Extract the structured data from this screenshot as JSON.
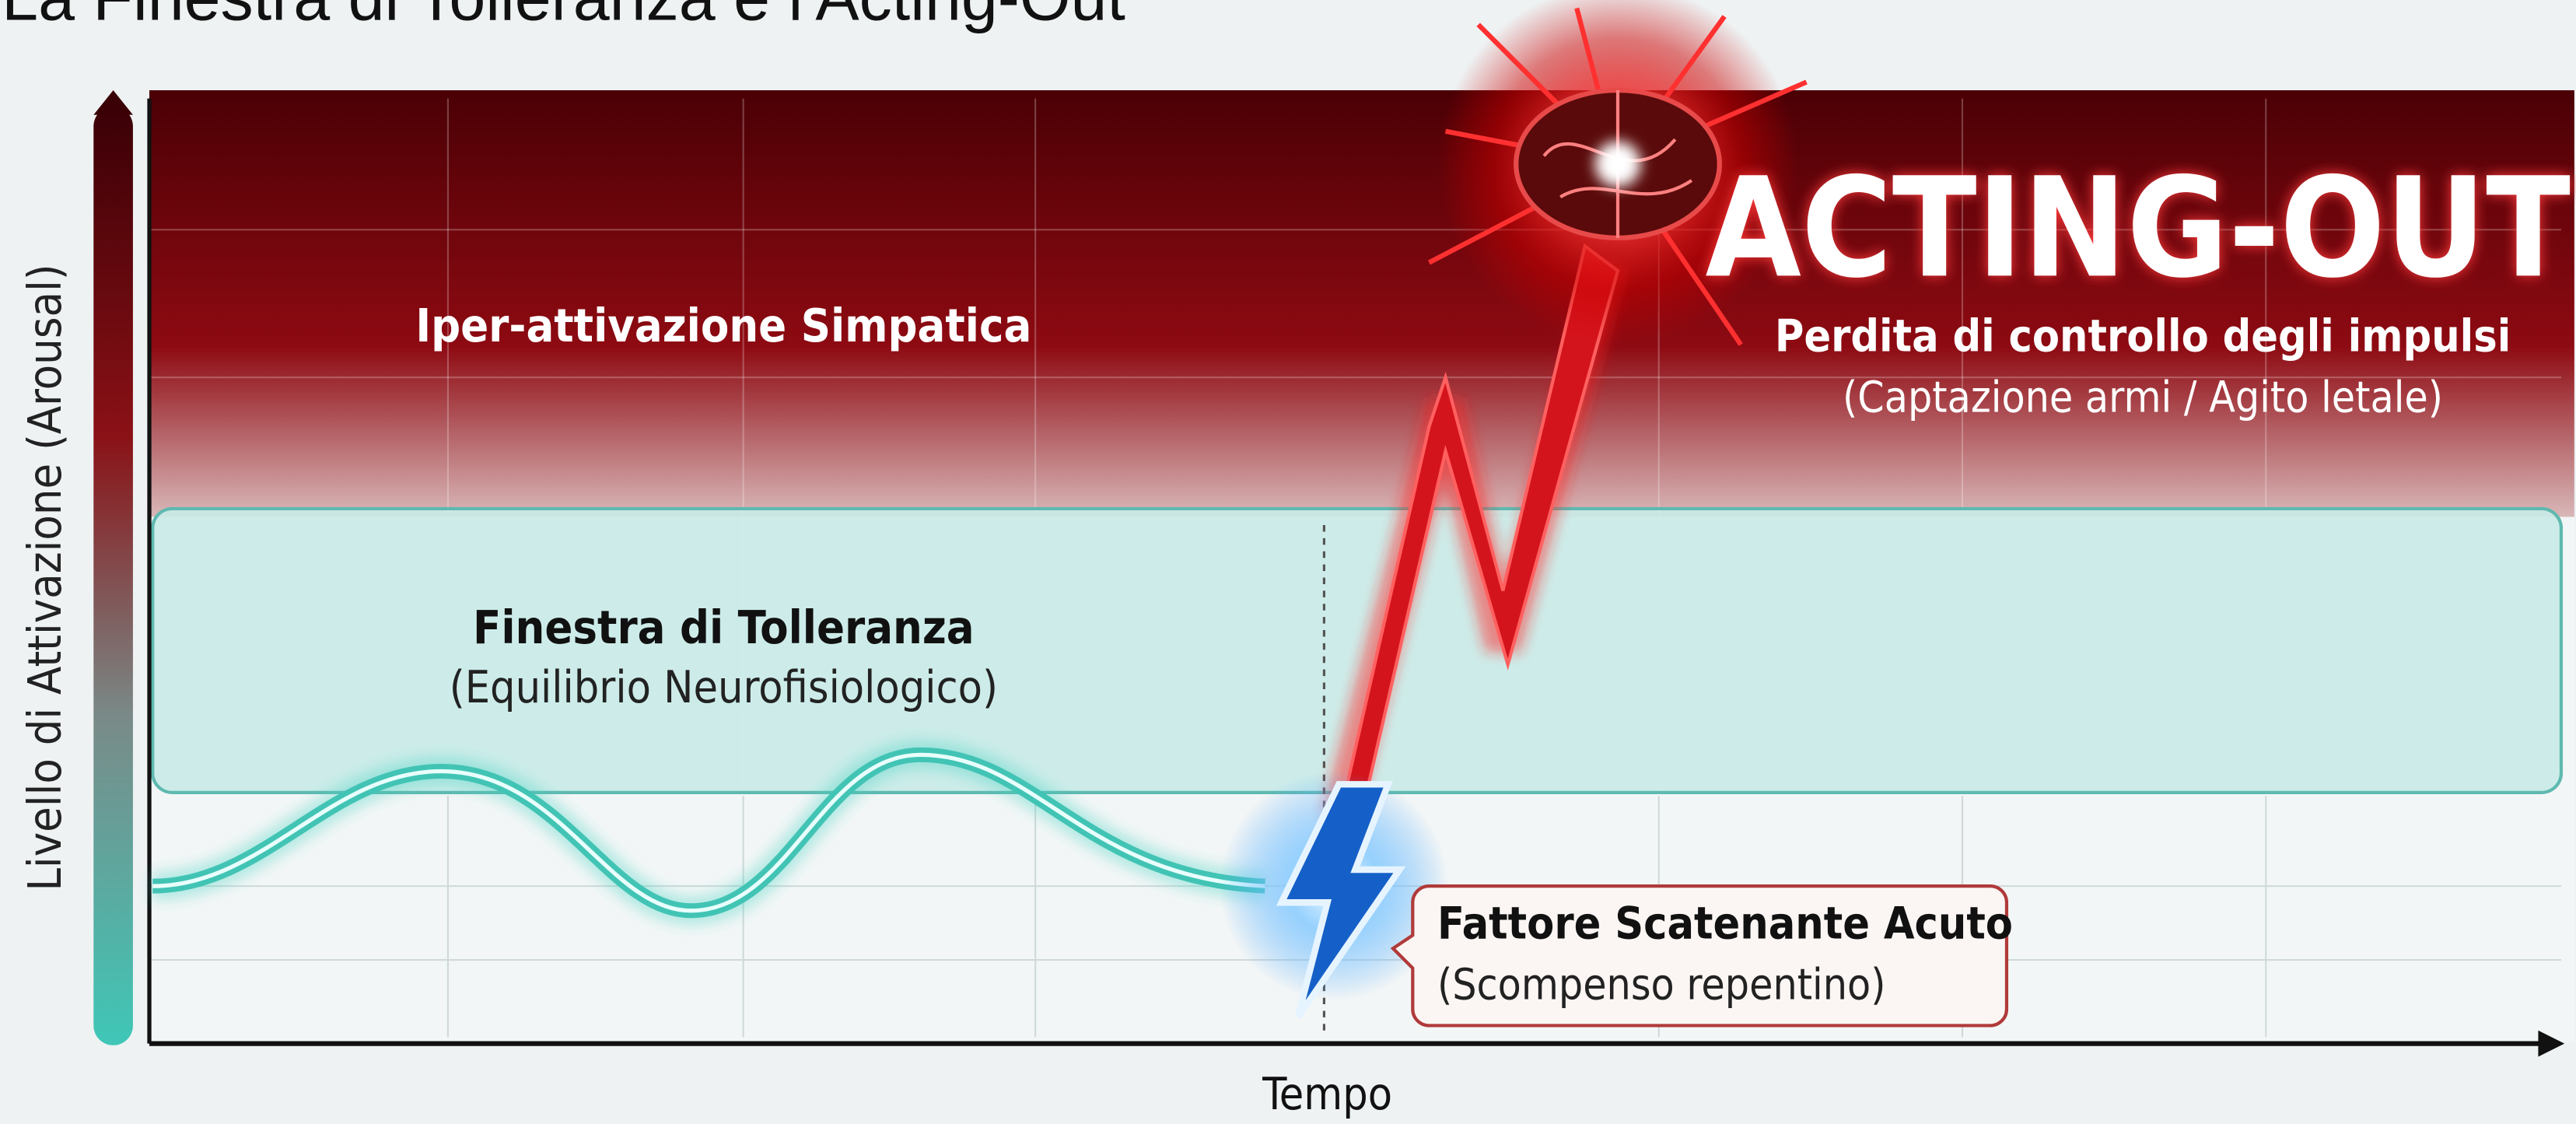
{
  "title": "La Finestra di Tolleranza e l'Acting-Out",
  "y_axis_label": "Livello di Attivazione (Arousal)",
  "x_axis_label": "Tempo",
  "hyperarousal": {
    "label": "Iper-attivazione Simpatica"
  },
  "window": {
    "label": "Finestra di Tolleranza",
    "sublabel": "(Equilibrio Neurofisiologico)"
  },
  "trigger": {
    "label": "Fattore Scatenante Acuto",
    "sublabel": "(Scompenso repentino)"
  },
  "acting_out": {
    "title": "ACTING-OUT",
    "subtitle": "Perdita di controllo degli impulsi",
    "detail": "(Captazione armi / Agito letale)"
  }
}
